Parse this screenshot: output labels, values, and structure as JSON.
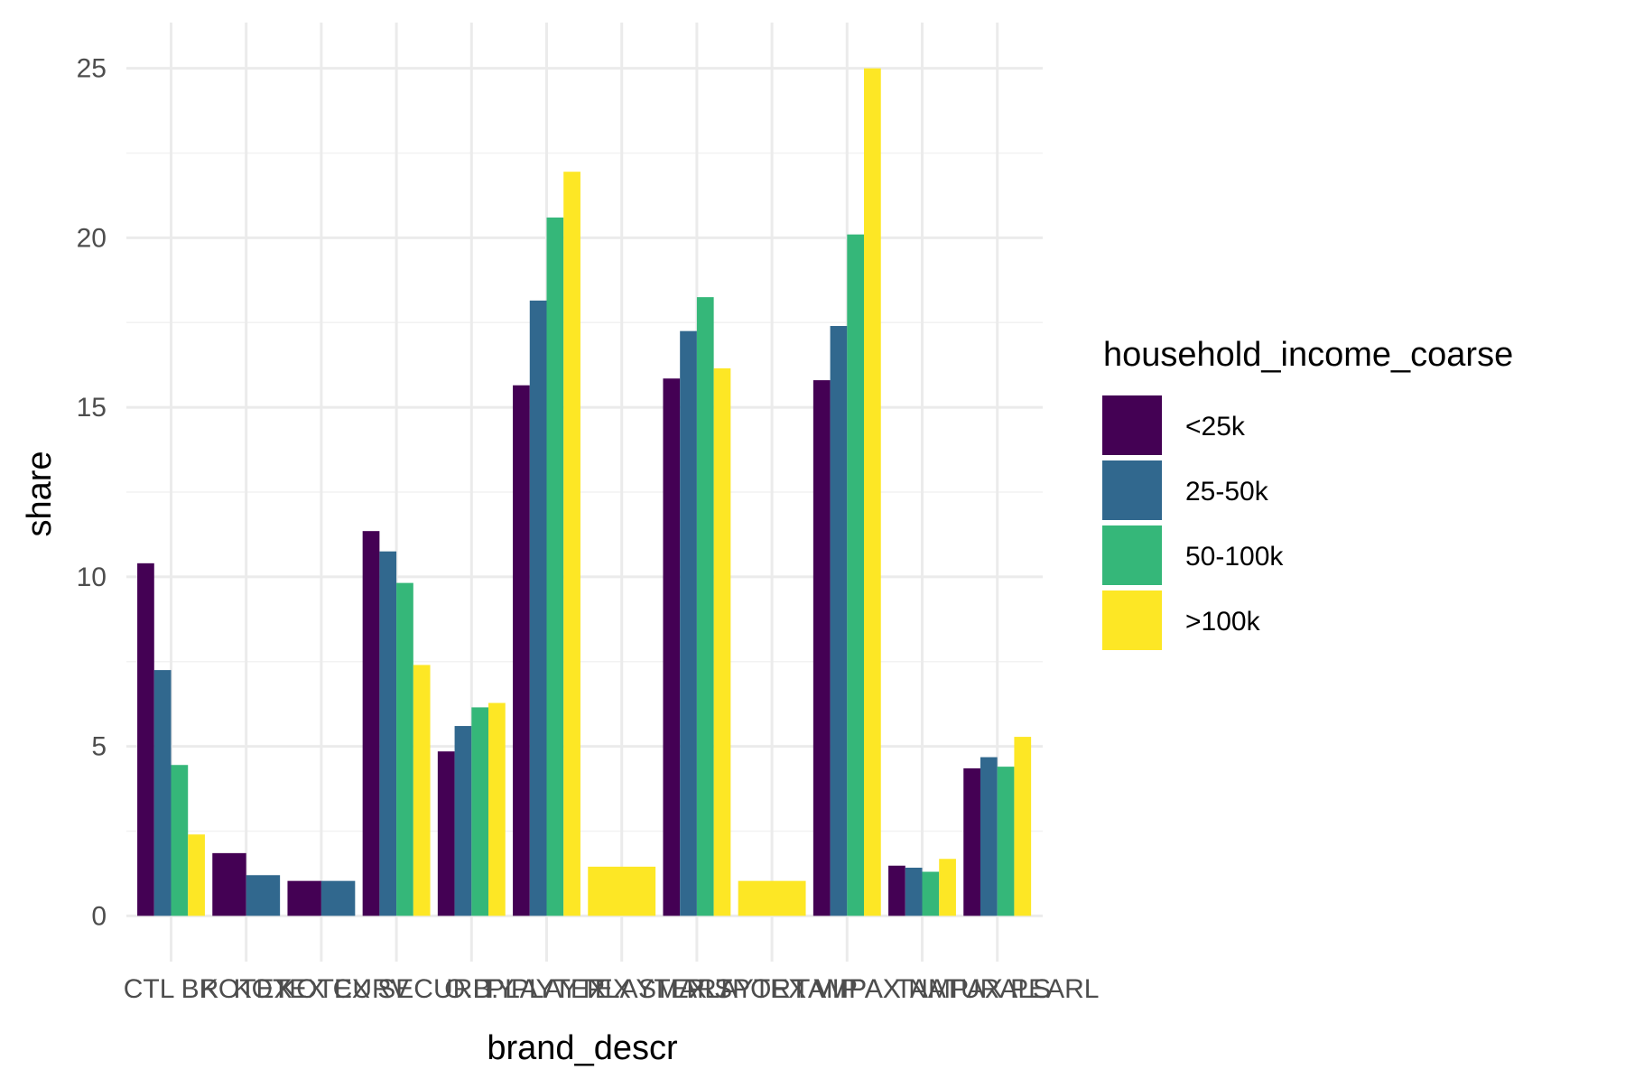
{
  "chart_data": {
    "type": "bar",
    "xlabel": "brand_descr",
    "ylabel": "share",
    "ylim": [
      -1.35,
      26.35
    ],
    "yticks": [
      0,
      5,
      10,
      15,
      20,
      25
    ],
    "grid": true,
    "legend_position": "right",
    "legend_title": "household_income_coarse",
    "categories": [
      "CTL BR",
      "KOTEX",
      "KOTEX CURV",
      "KOTEX SECURITY",
      "O.B.",
      "PLAYTEX",
      "PLAYTEX SMART",
      "PLAYTEX SPORT",
      "PLAYTEX VIP",
      "TAMPAX",
      "TAMPAX NATURALS",
      "TAMPAX PEARL"
    ],
    "series": [
      {
        "name": "<25k",
        "color": "#440154",
        "values": [
          10.4,
          1.85,
          1.03,
          11.35,
          4.85,
          15.65,
          null,
          15.85,
          null,
          15.8,
          1.48,
          4.35
        ]
      },
      {
        "name": "25-50k",
        "color": "#31688E",
        "values": [
          7.25,
          1.2,
          1.03,
          10.75,
          5.6,
          18.15,
          null,
          17.25,
          null,
          17.4,
          1.42,
          4.68
        ]
      },
      {
        "name": "50-100k",
        "color": "#35B779",
        "values": [
          4.45,
          null,
          null,
          9.82,
          6.15,
          20.6,
          null,
          18.25,
          null,
          20.1,
          1.3,
          4.4
        ]
      },
      {
        "name": ">100k",
        "color": "#FDE725",
        "values": [
          2.4,
          null,
          null,
          7.4,
          6.28,
          21.95,
          1.45,
          16.15,
          1.03,
          25.0,
          1.68,
          5.28
        ]
      }
    ]
  }
}
